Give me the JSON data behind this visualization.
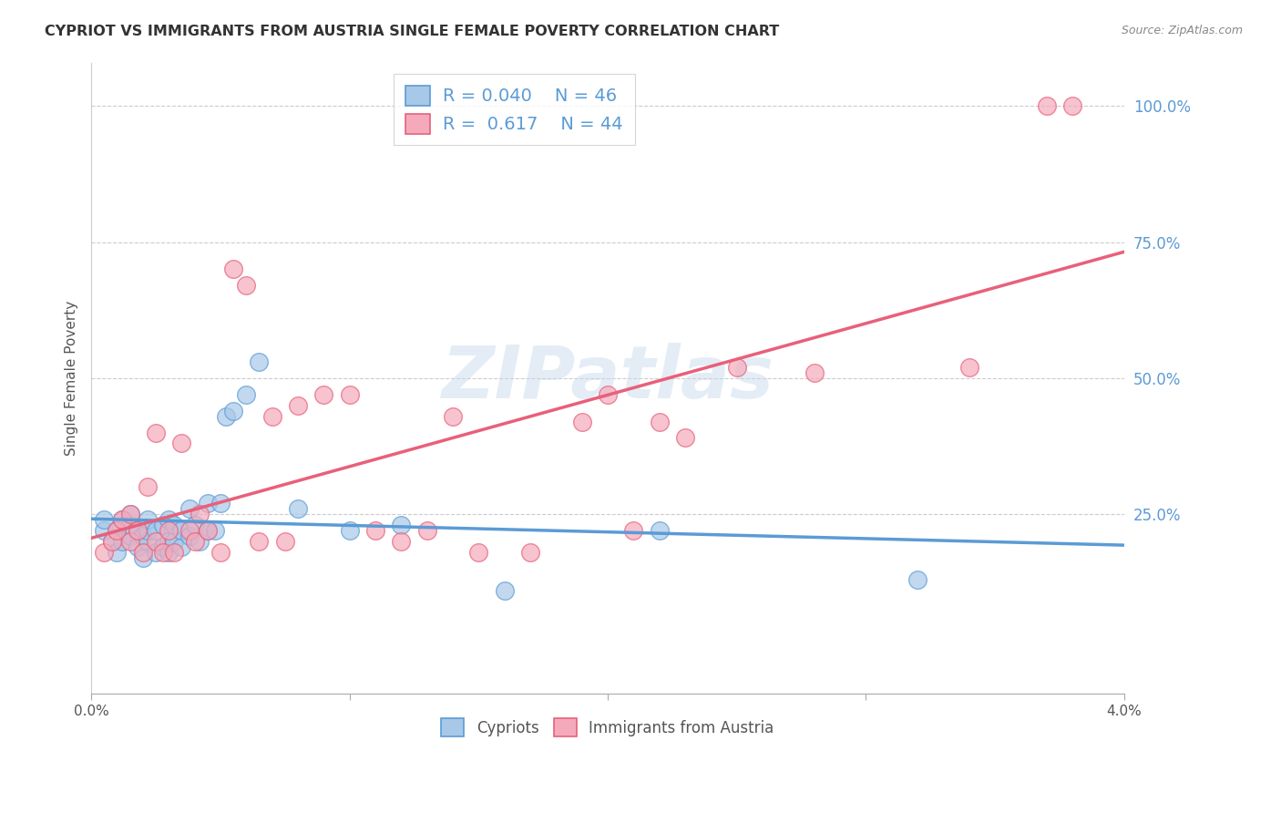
{
  "title": "CYPRIOT VS IMMIGRANTS FROM AUSTRIA SINGLE FEMALE POVERTY CORRELATION CHART",
  "source": "Source: ZipAtlas.com",
  "ylabel": "Single Female Poverty",
  "y_ticks": [
    0.25,
    0.5,
    0.75,
    1.0
  ],
  "y_tick_labels": [
    "25.0%",
    "50.0%",
    "75.0%",
    "100.0%"
  ],
  "xmin": 0.0,
  "xmax": 0.04,
  "ymin": -0.08,
  "ymax": 1.08,
  "legend_labels": [
    "Cypriots",
    "Immigrants from Austria"
  ],
  "legend_r": [
    "R = 0.040",
    "R =  0.617"
  ],
  "legend_n": [
    "N = 46",
    "N = 44"
  ],
  "cypriot_color": "#a8c8e8",
  "austria_color": "#f4aabb",
  "cypriot_line_color": "#5b9bd5",
  "austria_line_color": "#e8607a",
  "watermark": "ZIPatlas",
  "cypriot_R": 0.04,
  "austria_R": 0.617,
  "cypriot_x": [
    0.0005,
    0.0005,
    0.0008,
    0.001,
    0.001,
    0.0012,
    0.0012,
    0.0015,
    0.0015,
    0.0015,
    0.0018,
    0.0018,
    0.002,
    0.002,
    0.0022,
    0.0022,
    0.0022,
    0.0025,
    0.0025,
    0.0028,
    0.0028,
    0.003,
    0.003,
    0.003,
    0.0032,
    0.0032,
    0.0035,
    0.0035,
    0.0038,
    0.0038,
    0.004,
    0.0042,
    0.0045,
    0.0045,
    0.0048,
    0.005,
    0.0052,
    0.0055,
    0.006,
    0.0065,
    0.008,
    0.01,
    0.012,
    0.016,
    0.022,
    0.032
  ],
  "cypriot_y": [
    0.22,
    0.24,
    0.2,
    0.18,
    0.22,
    0.2,
    0.24,
    0.21,
    0.23,
    0.25,
    0.19,
    0.22,
    0.17,
    0.21,
    0.2,
    0.22,
    0.24,
    0.18,
    0.22,
    0.19,
    0.23,
    0.18,
    0.2,
    0.24,
    0.2,
    0.23,
    0.19,
    0.22,
    0.21,
    0.26,
    0.23,
    0.2,
    0.22,
    0.27,
    0.22,
    0.27,
    0.43,
    0.44,
    0.47,
    0.53,
    0.26,
    0.22,
    0.23,
    0.11,
    0.22,
    0.13
  ],
  "austria_x": [
    0.0005,
    0.0008,
    0.001,
    0.0012,
    0.0015,
    0.0015,
    0.0018,
    0.002,
    0.0022,
    0.0025,
    0.0025,
    0.0028,
    0.003,
    0.0032,
    0.0035,
    0.0038,
    0.004,
    0.0042,
    0.0045,
    0.005,
    0.0055,
    0.006,
    0.0065,
    0.007,
    0.0075,
    0.008,
    0.009,
    0.01,
    0.011,
    0.012,
    0.013,
    0.014,
    0.015,
    0.017,
    0.019,
    0.02,
    0.021,
    0.022,
    0.023,
    0.025,
    0.028,
    0.034,
    0.037,
    0.038
  ],
  "austria_y": [
    0.18,
    0.2,
    0.22,
    0.24,
    0.2,
    0.25,
    0.22,
    0.18,
    0.3,
    0.2,
    0.4,
    0.18,
    0.22,
    0.18,
    0.38,
    0.22,
    0.2,
    0.25,
    0.22,
    0.18,
    0.7,
    0.67,
    0.2,
    0.43,
    0.2,
    0.45,
    0.47,
    0.47,
    0.22,
    0.2,
    0.22,
    0.43,
    0.18,
    0.18,
    0.42,
    0.47,
    0.22,
    0.42,
    0.39,
    0.52,
    0.51,
    0.52,
    1.0,
    1.0
  ]
}
